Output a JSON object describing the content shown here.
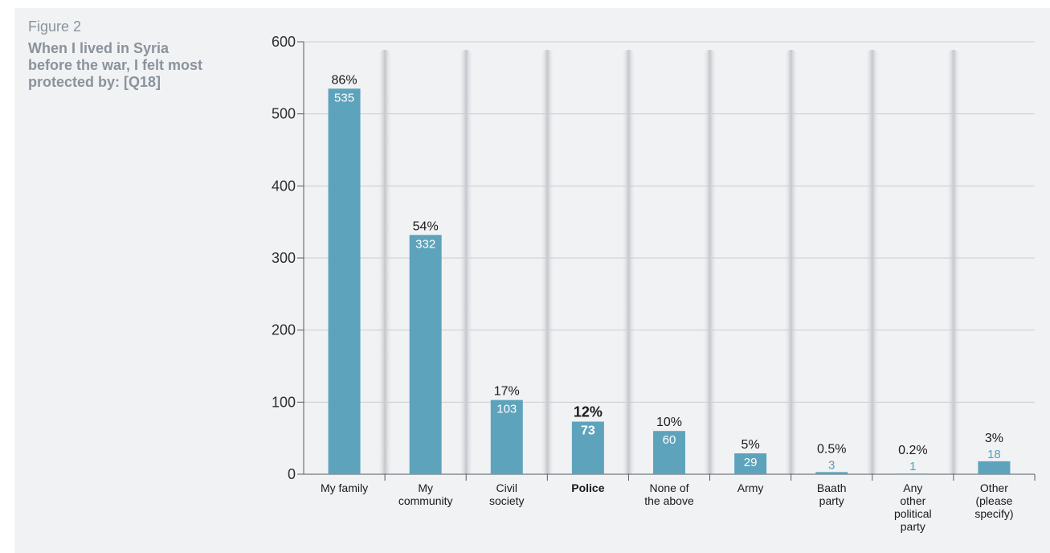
{
  "figure": {
    "label": "Figure 2",
    "title": "When I lived in Syria before the war, I felt most protected by: [Q18]"
  },
  "colors": {
    "bar": "#5ea3bc",
    "background": "#f1f2f4",
    "grid": "#c9ccd0",
    "axis": "#555a60"
  },
  "chart_data": {
    "type": "bar",
    "title": "When I lived in Syria before the war, I felt most protected by: [Q18]",
    "xlabel": "",
    "ylabel": "",
    "ylim": [
      0,
      600
    ],
    "yticks": [
      "0",
      "100",
      "200",
      "300",
      "400",
      "500",
      "600"
    ],
    "grid": true,
    "categories": [
      [
        "My family"
      ],
      [
        "My",
        "community"
      ],
      [
        "Civil",
        "society"
      ],
      [
        "Police"
      ],
      [
        "None of",
        "the above"
      ],
      [
        "Army"
      ],
      [
        "Baath",
        "party"
      ],
      [
        "Any",
        "other",
        "political",
        "party"
      ],
      [
        "Other",
        "(please",
        "specify)"
      ]
    ],
    "values": [
      535,
      332,
      103,
      73,
      60,
      29,
      3,
      1,
      18
    ],
    "value_labels": [
      "535",
      "332",
      "103",
      "73",
      "60",
      "29",
      "3",
      "1",
      "18"
    ],
    "percent_labels": [
      "86%",
      "54%",
      "17%",
      "12%",
      "10%",
      "5%",
      "0.5%",
      "0.2%",
      "3%"
    ],
    "highlighted_category_index": 3
  }
}
